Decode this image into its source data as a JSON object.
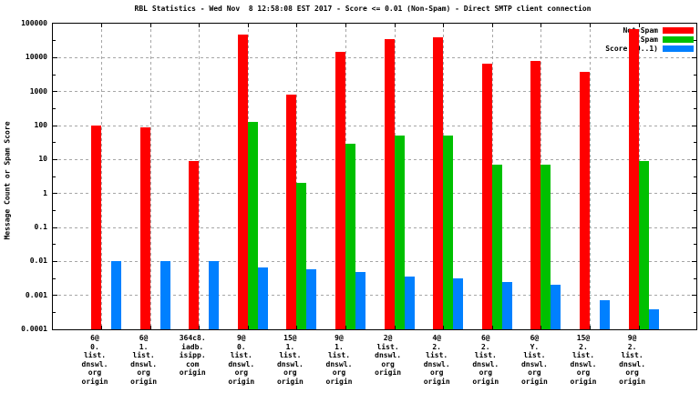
{
  "title": "RBL Statistics - Wed Nov  8 12:58:08 EST 2017 - Score <= 0.01 (Non-Spam) - Direct SMTP client connection",
  "ylabel": "Message Count or Spam Score",
  "colors": {
    "not_spam": "#ff0000",
    "spam": "#00c000",
    "score": "#0080ff",
    "grid": "#a6a6a6",
    "axis": "#000000",
    "background": "#ffffff"
  },
  "chart_data": {
    "type": "bar",
    "scale": "log",
    "ylim": [
      0.0001,
      100000
    ],
    "grid": true,
    "legend_position": "top-right-inside",
    "ytick_labels": [
      "100000",
      "10000",
      "1000",
      "100",
      "10",
      "1",
      "0.1",
      "0.01",
      "0.001",
      "0.0001"
    ],
    "categories": [
      [
        "6@",
        "0.",
        "list.",
        "dnswl.",
        "org",
        "origin"
      ],
      [
        "6@",
        "1.",
        "list.",
        "dnswl.",
        "org",
        "origin"
      ],
      [
        "364c8.",
        "iadb.",
        "isipp.",
        "com",
        "origin"
      ],
      [
        "9@",
        "0.",
        "list.",
        "dnswl.",
        "org",
        "origin"
      ],
      [
        "15@",
        "1.",
        "list.",
        "dnswl.",
        "org",
        "origin"
      ],
      [
        "9@",
        "1.",
        "list.",
        "dnswl.",
        "org",
        "origin"
      ],
      [
        "2@",
        "list.",
        "dnswl.",
        "org",
        "origin"
      ],
      [
        "4@",
        "2.",
        "list.",
        "dnswl.",
        "org",
        "origin"
      ],
      [
        "6@",
        "2.",
        "list.",
        "dnswl.",
        "org",
        "origin"
      ],
      [
        "6@",
        "Y.",
        "list.",
        "dnswl.",
        "org",
        "origin"
      ],
      [
        "15@",
        "2.",
        "list.",
        "dnswl.",
        "org",
        "origin"
      ],
      [
        "9@",
        "2.",
        "list.",
        "dnswl.",
        "org",
        "origin"
      ]
    ],
    "series": [
      {
        "name": "Not Spam",
        "color": "#ff0000",
        "values": [
          100,
          90,
          9,
          48000,
          800,
          15000,
          35000,
          40000,
          6800,
          8200,
          3700,
          70000
        ]
      },
      {
        "name": "Spam",
        "color": "#00c000",
        "values": [
          null,
          null,
          null,
          130,
          2,
          30,
          50,
          50,
          7,
          7,
          null,
          9
        ]
      },
      {
        "name": "Score (0..1)",
        "color": "#0080ff",
        "values": [
          0.01,
          0.01,
          0.01,
          0.0065,
          0.006,
          0.005,
          0.0035,
          0.0032,
          0.0024,
          0.0021,
          0.0007,
          0.0004
        ]
      }
    ]
  }
}
